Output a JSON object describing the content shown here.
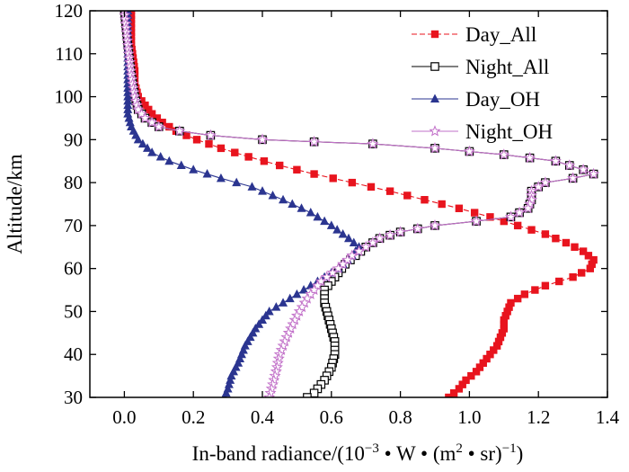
{
  "chart_data": {
    "type": "line",
    "title": "",
    "xlabel_prefix": "In-band radiance/(10",
    "xlabel_exp1": "−3",
    "xlabel_mid": " • W • (m",
    "xlabel_exp2": "2",
    "xlabel_post": " • sr)",
    "xlabel_exp3": "−1",
    "xlabel_close": ")",
    "ylabel": "Altitude/km",
    "xlim": [
      -0.1,
      1.4
    ],
    "ylim": [
      30,
      120
    ],
    "xticks": [
      0.0,
      0.2,
      0.4,
      0.6,
      0.8,
      1.0,
      1.2,
      1.4
    ],
    "xtick_labels": [
      "0.0",
      "0.2",
      "0.4",
      "0.6",
      "0.8",
      "1.0",
      "1.2",
      "1.4"
    ],
    "yticks": [
      30,
      40,
      50,
      60,
      70,
      80,
      90,
      100,
      110,
      120
    ],
    "ytick_labels": [
      "30",
      "40",
      "50",
      "60",
      "70",
      "80",
      "90",
      "100",
      "110",
      "120"
    ],
    "legend_position": "top-right",
    "series": [
      {
        "name": "Day_All",
        "color": "#e8141e",
        "marker": "square-filled",
        "line": "dashed",
        "points": [
          [
            0.02,
            120
          ],
          [
            0.02,
            112
          ],
          [
            0.03,
            106
          ],
          [
            0.03,
            103
          ],
          [
            0.04,
            100
          ],
          [
            0.06,
            98
          ],
          [
            0.08,
            96
          ],
          [
            0.11,
            94
          ],
          [
            0.15,
            92
          ],
          [
            0.21,
            90
          ],
          [
            0.28,
            88
          ],
          [
            0.36,
            86
          ],
          [
            0.45,
            84
          ],
          [
            0.55,
            82
          ],
          [
            0.66,
            80
          ],
          [
            0.77,
            78
          ],
          [
            0.87,
            76
          ],
          [
            0.97,
            74
          ],
          [
            1.06,
            72
          ],
          [
            1.14,
            70
          ],
          [
            1.22,
            68
          ],
          [
            1.28,
            66
          ],
          [
            1.33,
            64
          ],
          [
            1.36,
            62
          ],
          [
            1.35,
            60
          ],
          [
            1.3,
            58
          ],
          [
            1.22,
            56
          ],
          [
            1.16,
            54
          ],
          [
            1.12,
            52
          ],
          [
            1.11,
            50
          ],
          [
            1.1,
            48
          ],
          [
            1.1,
            46
          ],
          [
            1.09,
            44
          ],
          [
            1.08,
            42
          ],
          [
            1.06,
            40
          ],
          [
            1.04,
            38
          ],
          [
            1.02,
            36
          ],
          [
            0.99,
            34
          ],
          [
            0.97,
            32
          ],
          [
            0.94,
            30
          ]
        ]
      },
      {
        "name": "Night_All",
        "color": "#000000",
        "marker": "square-open",
        "line": "solid",
        "points": [
          [
            0.0,
            120
          ],
          [
            0.01,
            112
          ],
          [
            0.02,
            105
          ],
          [
            0.03,
            100
          ],
          [
            0.04,
            97
          ],
          [
            0.06,
            95
          ],
          [
            0.1,
            93
          ],
          [
            0.16,
            92
          ],
          [
            0.25,
            91
          ],
          [
            0.4,
            90
          ],
          [
            0.55,
            89.5
          ],
          [
            0.72,
            89
          ],
          [
            0.9,
            88
          ],
          [
            1.1,
            86.5
          ],
          [
            1.25,
            85
          ],
          [
            1.33,
            83
          ],
          [
            1.36,
            82
          ],
          [
            1.3,
            81
          ],
          [
            1.22,
            80
          ],
          [
            1.18,
            78
          ],
          [
            1.18,
            76
          ],
          [
            1.17,
            74
          ],
          [
            1.12,
            72
          ],
          [
            1.02,
            71
          ],
          [
            0.9,
            70
          ],
          [
            0.8,
            68.5
          ],
          [
            0.74,
            67
          ],
          [
            0.7,
            65
          ],
          [
            0.67,
            63
          ],
          [
            0.64,
            61
          ],
          [
            0.62,
            59
          ],
          [
            0.6,
            57
          ],
          [
            0.58,
            55
          ],
          [
            0.58,
            52
          ],
          [
            0.59,
            49
          ],
          [
            0.6,
            46
          ],
          [
            0.61,
            43
          ],
          [
            0.61,
            40
          ],
          [
            0.6,
            37
          ],
          [
            0.58,
            34
          ],
          [
            0.55,
            31
          ],
          [
            0.53,
            30
          ]
        ]
      },
      {
        "name": "Day_OH",
        "color": "#2b3590",
        "marker": "triangle-filled",
        "line": "solid",
        "points": [
          [
            0.01,
            120
          ],
          [
            0.01,
            112
          ],
          [
            0.01,
            105
          ],
          [
            0.01,
            100
          ],
          [
            0.01,
            96
          ],
          [
            0.02,
            93
          ],
          [
            0.04,
            90
          ],
          [
            0.08,
            87
          ],
          [
            0.13,
            85
          ],
          [
            0.2,
            83
          ],
          [
            0.28,
            81
          ],
          [
            0.37,
            79
          ],
          [
            0.46,
            76
          ],
          [
            0.54,
            73
          ],
          [
            0.6,
            70
          ],
          [
            0.65,
            67
          ],
          [
            0.68,
            65
          ],
          [
            0.66,
            63
          ],
          [
            0.62,
            60
          ],
          [
            0.56,
            57
          ],
          [
            0.48,
            53
          ],
          [
            0.42,
            50
          ],
          [
            0.38,
            46
          ],
          [
            0.35,
            42
          ],
          [
            0.33,
            38
          ],
          [
            0.31,
            35
          ],
          [
            0.3,
            32
          ],
          [
            0.29,
            30
          ]
        ]
      },
      {
        "name": "Night_OH",
        "color": "#c271c9",
        "marker": "star-open",
        "line": "solid",
        "points": [
          [
            0.0,
            120
          ],
          [
            0.01,
            112
          ],
          [
            0.02,
            105
          ],
          [
            0.03,
            100
          ],
          [
            0.04,
            97
          ],
          [
            0.06,
            95
          ],
          [
            0.1,
            93
          ],
          [
            0.16,
            92
          ],
          [
            0.25,
            91
          ],
          [
            0.4,
            90
          ],
          [
            0.55,
            89.5
          ],
          [
            0.72,
            89
          ],
          [
            0.9,
            88
          ],
          [
            1.1,
            86.5
          ],
          [
            1.25,
            85
          ],
          [
            1.33,
            83
          ],
          [
            1.36,
            82
          ],
          [
            1.3,
            81
          ],
          [
            1.22,
            80
          ],
          [
            1.18,
            78
          ],
          [
            1.18,
            76
          ],
          [
            1.17,
            74
          ],
          [
            1.12,
            72
          ],
          [
            1.02,
            71
          ],
          [
            0.9,
            70
          ],
          [
            0.8,
            68.5
          ],
          [
            0.74,
            67
          ],
          [
            0.7,
            65
          ],
          [
            0.66,
            63
          ],
          [
            0.62,
            60
          ],
          [
            0.57,
            57
          ],
          [
            0.53,
            53
          ],
          [
            0.5,
            49
          ],
          [
            0.47,
            44
          ],
          [
            0.45,
            40
          ],
          [
            0.44,
            36
          ],
          [
            0.43,
            33
          ],
          [
            0.42,
            30
          ]
        ]
      }
    ],
    "legend": [
      "Day_All",
      "Night_All",
      "Day_OH",
      "Night_OH"
    ]
  }
}
